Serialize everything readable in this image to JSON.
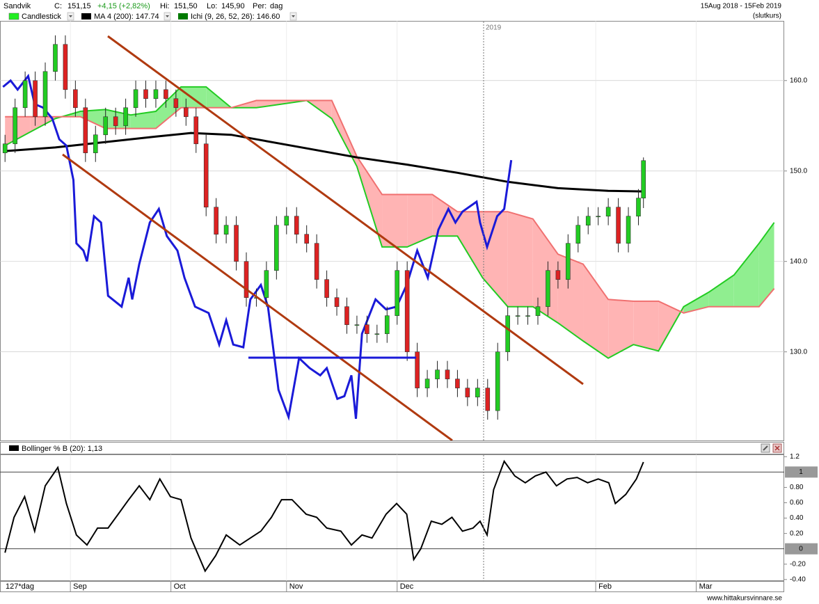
{
  "header": {
    "name": "Sandvik",
    "close_label": "C:",
    "close": "151,15",
    "change": "+4,15 (+2,82%)",
    "high_label": "Hi:",
    "high": "151,50",
    "low_label": "Lo:",
    "low": "145,90",
    "period_label": "Per:",
    "period": "dag",
    "range": "15Aug 2018 - 15Feb 2019",
    "price_type": "(slutkurs)"
  },
  "footer": {
    "period_count": "127*dag",
    "source": "www.hittakursvinnare.se"
  },
  "chart_data": [
    {
      "type": "candlestick",
      "candles": {
        "name": "Candlestick",
        "color": "#22ee22",
        "up_color": "#22cc22",
        "down_color": "#dd2222",
        "x": [
          0,
          2,
          4,
          6,
          8,
          10,
          12,
          14,
          16,
          18,
          20,
          22,
          24,
          26,
          28,
          30,
          32,
          34,
          36,
          38,
          40,
          42,
          44,
          46,
          48,
          50,
          52,
          54,
          56,
          58,
          60,
          62,
          64,
          66,
          68,
          70,
          72,
          74,
          76,
          78,
          80,
          82,
          84,
          86,
          88,
          90,
          92,
          94,
          96,
          98,
          100,
          102,
          104,
          106,
          108,
          110,
          112,
          114,
          116,
          118,
          120,
          122,
          124,
          126,
          127
        ],
        "open": [
          152,
          153,
          157,
          160,
          156,
          161,
          164,
          159,
          157,
          152,
          154,
          156,
          155,
          157,
          159,
          158,
          159,
          158,
          157,
          156,
          153,
          146,
          143,
          144,
          140,
          136,
          136,
          139,
          144,
          145,
          143,
          142,
          138,
          136,
          135,
          133,
          133,
          132,
          132,
          134,
          139,
          130,
          126,
          127,
          128,
          127,
          126,
          125,
          126,
          123.5,
          130,
          134,
          134,
          134,
          135,
          139,
          138,
          142,
          144,
          145,
          145,
          146,
          142,
          145,
          147
        ],
        "high": [
          154,
          158,
          161,
          161,
          162,
          165,
          165,
          160,
          158,
          155,
          157,
          157,
          158,
          160,
          160,
          160,
          160,
          159,
          158,
          157,
          154,
          147,
          145,
          145,
          141,
          137,
          140,
          145,
          146,
          146,
          144,
          143,
          139,
          137,
          136,
          134,
          134,
          133,
          135,
          140,
          140,
          131,
          128,
          129,
          129,
          128,
          127,
          127,
          127,
          131,
          135,
          135,
          135,
          136,
          140,
          140,
          143,
          145,
          146,
          146,
          147,
          147,
          146,
          148,
          151.5
        ],
        "low": [
          151,
          152,
          156,
          155,
          155,
          160,
          158,
          156,
          151,
          151,
          153,
          154,
          154,
          156,
          157,
          157,
          157,
          156,
          155,
          152,
          145,
          142,
          142,
          139,
          135,
          135,
          135,
          138,
          143,
          142,
          141,
          137,
          135,
          134,
          132,
          132,
          131,
          131,
          131,
          133,
          129,
          125,
          125,
          126,
          126,
          125,
          124,
          124,
          122.5,
          122.5,
          129,
          133,
          133,
          133,
          134,
          137,
          137,
          141,
          143,
          144,
          144,
          141,
          141,
          144,
          145.9
        ],
        "close": [
          153,
          157,
          160,
          156,
          161,
          164,
          159,
          157,
          152,
          154,
          156,
          155,
          157,
          159,
          158,
          159,
          158,
          157,
          156,
          153,
          146,
          143,
          144,
          140,
          136,
          136,
          139,
          144,
          145,
          143,
          142,
          138,
          136,
          135,
          133,
          133,
          132,
          132,
          134,
          139,
          130,
          126,
          127,
          128,
          127,
          126,
          125,
          126,
          123.5,
          130,
          134,
          134,
          134,
          135,
          139,
          138,
          142,
          144,
          145,
          145,
          146,
          142,
          145,
          147,
          151.15
        ]
      },
      "ma": {
        "name": "MA 4 (200): 147.74",
        "color": "#000000",
        "x": [
          0,
          10,
          20,
          30,
          37,
          45,
          50,
          60,
          70,
          80,
          90,
          100,
          110,
          120,
          127
        ],
        "values": [
          152.2,
          152.6,
          153.2,
          153.8,
          154.2,
          154,
          153.5,
          152.5,
          151.5,
          150.7,
          149.8,
          148.8,
          148.1,
          147.8,
          147.74
        ]
      },
      "ichimoku": {
        "name": "Ichi (9, 26, 52, 26): 146.60",
        "color": "#007a00",
        "span_a_color": "#22cc22",
        "span_b_color": "#f07070",
        "bull_fill": "#90ee90",
        "bear_fill": "#ffb4b4",
        "x": [
          0,
          5,
          10,
          15,
          20,
          25,
          30,
          35,
          40,
          45,
          50,
          55,
          60,
          65,
          70,
          75,
          80,
          85,
          90,
          95,
          100,
          105,
          110,
          115,
          120,
          125,
          130,
          135,
          140,
          145,
          150,
          153
        ],
        "span_a": [
          152.8,
          154.3,
          155.8,
          156.6,
          156.8,
          156.2,
          156.6,
          159.3,
          159.3,
          157,
          157,
          157.4,
          157.8,
          155.8,
          150.5,
          141.6,
          141.6,
          142.8,
          142.8,
          138.2,
          135,
          135,
          133.2,
          131.2,
          129.3,
          130.8,
          130.1,
          135,
          136.6,
          138.5,
          142,
          144.3
        ],
        "span_b": [
          156,
          156,
          156,
          156,
          154.7,
          154.7,
          154.7,
          157,
          157,
          157,
          157.8,
          157.8,
          157.8,
          157.8,
          151.6,
          147.4,
          147.4,
          147.4,
          145.5,
          145.5,
          145.5,
          144.7,
          140.8,
          139.7,
          135.8,
          135.6,
          135.6,
          134.3,
          135,
          135,
          135,
          137
        ]
      },
      "overlay_line": {
        "color": "#1a1ad8",
        "x": [
          -0.4,
          1.1,
          2.5,
          4.6,
          5.9,
          7.6,
          9.4,
          10.8,
          12.2,
          13.6,
          14.2,
          15.6,
          16.3,
          17.7,
          19.1,
          20.5,
          23.2,
          24.6,
          25.3,
          26.7,
          28.8,
          30.6,
          32.2,
          34.3,
          35.7,
          37.8,
          40.5,
          42.6,
          44,
          45.4,
          47.4,
          48.8,
          50.9,
          52.3,
          54.4,
          56.4,
          58.5,
          60.6,
          62.7,
          64,
          66.1,
          67.5,
          68.9,
          69.8,
          71,
          73.7,
          75.8,
          77.9,
          79.9,
          82,
          84.1,
          86.2,
          88.2,
          89.6,
          91,
          93.8,
          94.5,
          95.9,
          97.9,
          99.3,
          100.7
        ],
        "values": [
          159.3,
          160,
          159,
          160.5,
          157.4,
          157,
          155.8,
          153.5,
          152.8,
          149,
          142,
          141.2,
          140,
          145,
          144.3,
          136.2,
          135,
          138.2,
          135.8,
          139.7,
          144.3,
          145.8,
          142.8,
          141.2,
          138.2,
          135,
          134.3,
          130.8,
          133.5,
          130.8,
          130.5,
          135.8,
          137.4,
          135,
          125.8,
          122.8,
          129.3,
          128.2,
          127.4,
          128.2,
          124.8,
          125.1,
          127.4,
          122.6,
          132,
          135.8,
          134.7,
          135,
          137.4,
          141.2,
          138.2,
          143.5,
          145.8,
          144.3,
          145.5,
          146.6,
          144.3,
          141.6,
          145,
          145.8,
          151.2
        ]
      },
      "xlim": [
        -1,
        155
      ],
      "xticks": [
        {
          "value": 13,
          "label": "Sep"
        },
        {
          "value": 33,
          "label": "Oct"
        },
        {
          "value": 56,
          "label": "Nov"
        },
        {
          "value": 78,
          "label": "Dec"
        },
        2019,
        {
          "value": 117.5,
          "label": "Feb"
        },
        {
          "value": 137.5,
          "label": "Mar"
        }
      ],
      "ylim": [
        120.2,
        166.6
      ],
      "yticks": [
        {
          "value": 130,
          "label": "130.0"
        },
        {
          "value": 140,
          "label": "140.0"
        },
        {
          "value": 150,
          "label": "150.0"
        },
        {
          "value": 160,
          "label": "160.0"
        }
      ],
      "grid": true
    },
    {
      "type": "line",
      "title": "Bollinger % B (20): 1,13",
      "color": "#000000",
      "x": [
        0,
        1.8,
        3.9,
        5.9,
        8,
        10.5,
        12.2,
        14.2,
        16.3,
        18.4,
        20.5,
        22.5,
        24.6,
        26.7,
        28.8,
        30.8,
        32.9,
        35,
        37,
        39.8,
        41.9,
        44,
        46.7,
        48.8,
        50.9,
        53,
        55,
        57.1,
        59.9,
        62,
        64,
        66.8,
        68.9,
        71,
        73,
        75.8,
        77.9,
        79.9,
        81.3,
        82.7,
        84.8,
        86.9,
        88.9,
        91,
        93.1,
        94.5,
        95.9,
        97.2,
        99.3,
        101.4,
        103.5,
        105.5,
        107.6,
        109.7,
        111.8,
        113.8,
        115.9,
        118,
        120.1,
        121.4,
        123.5,
        125.6,
        127
      ],
      "values": [
        -0.05,
        0.41,
        0.68,
        0.23,
        0.82,
        1.06,
        0.59,
        0.18,
        0.05,
        0.27,
        0.27,
        0.45,
        0.64,
        0.82,
        0.64,
        0.91,
        0.68,
        0.64,
        0.14,
        -0.29,
        -0.09,
        0.18,
        0.05,
        0.14,
        0.23,
        0.41,
        0.64,
        0.64,
        0.45,
        0.41,
        0.27,
        0.23,
        0.05,
        0.18,
        0.14,
        0.45,
        0.59,
        0.45,
        -0.14,
        0,
        0.36,
        0.32,
        0.41,
        0.23,
        0.27,
        0.36,
        0.18,
        0.77,
        1.14,
        0.95,
        0.86,
        0.95,
        1.0,
        0.82,
        0.91,
        0.93,
        0.86,
        0.91,
        0.86,
        0.59,
        0.71,
        0.91,
        1.13
      ],
      "xlim": [
        -1,
        155
      ],
      "ylim": [
        -0.42,
        1.23
      ],
      "yticks": [
        1.2,
        {
          "value": 0.8,
          "label": "0.80"
        },
        {
          "value": 0.6,
          "label": "0.60"
        },
        {
          "value": 0.4,
          "label": "0.40"
        },
        {
          "value": 0.2,
          "label": "0.20"
        },
        {
          "value": -0.2,
          "label": "-0.20"
        },
        {
          "value": -0.4,
          "label": "-0.40"
        }
      ],
      "reference_lines": [
        1,
        0
      ]
    }
  ]
}
